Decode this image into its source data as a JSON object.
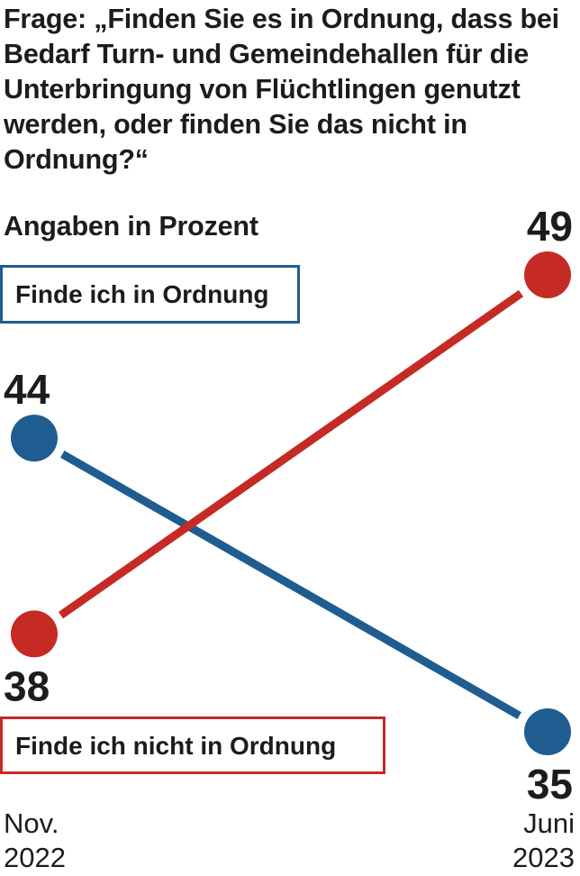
{
  "question": "Frage: „Finden Sie es in Ordnung, dass bei Bedarf Turn- und Gemeindehallen für die Unterbringung von Flüchtlingen genutzt werden, oder finden Sie das nicht in Ordnung?“",
  "unit_note": "Angaben in Prozent",
  "colors": {
    "ok": "#1f5c8f",
    "not_ok": "#c62a24"
  },
  "chart_data": {
    "type": "line",
    "x": [
      {
        "month": "Nov.",
        "year": "2022"
      },
      {
        "month": "Juni",
        "year": "2023"
      }
    ],
    "series": [
      {
        "name": "Finde ich in Ordnung",
        "values": [
          44,
          35
        ],
        "color": "#1f5c8f"
      },
      {
        "name": "Finde ich nicht in Ordnung",
        "values": [
          38,
          49
        ],
        "color": "#c62a24"
      }
    ],
    "grid": false
  }
}
